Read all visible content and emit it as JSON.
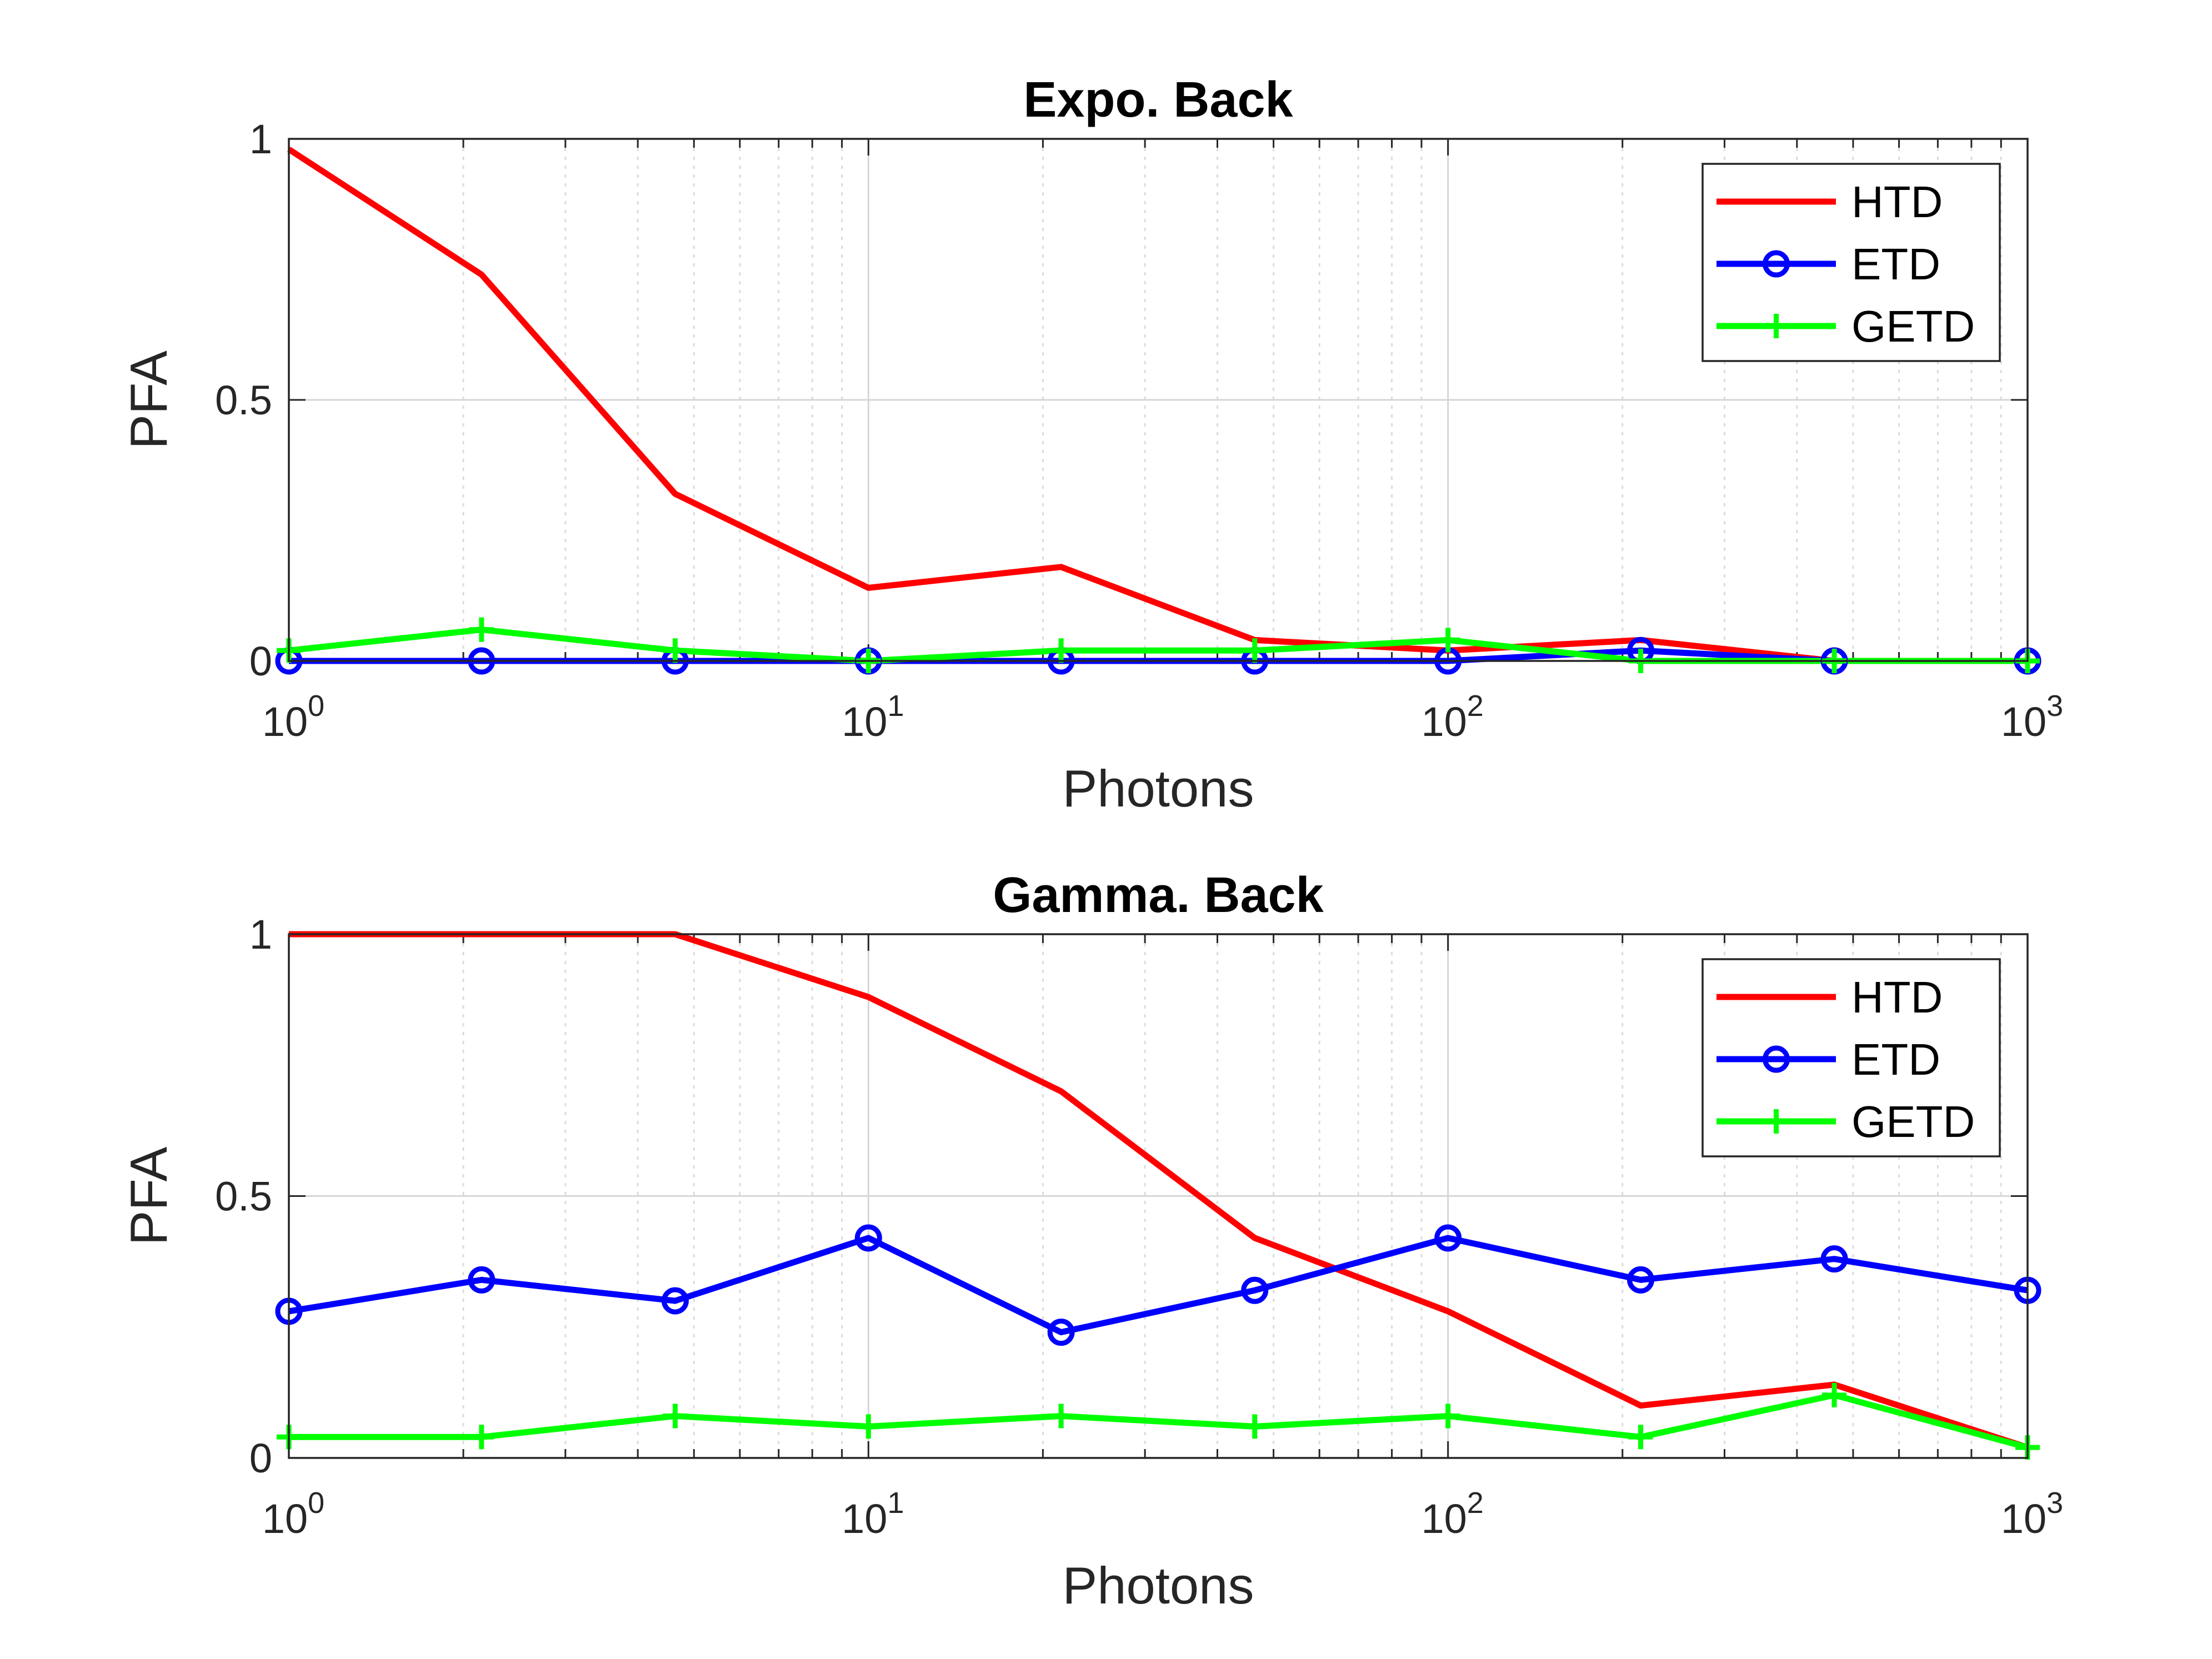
{
  "chart_data": [
    {
      "type": "line",
      "title": "Expo. Back",
      "xlabel": "Photons",
      "ylabel": "PFA",
      "xscale": "log",
      "xlim": [
        1,
        1000
      ],
      "ylim": [
        0,
        1
      ],
      "x_ticks": [
        1,
        10,
        100,
        1000
      ],
      "x_tick_labels": [
        [
          "10",
          "0"
        ],
        [
          "10",
          "1"
        ],
        [
          "10",
          "2"
        ],
        [
          "10",
          "3"
        ]
      ],
      "y_ticks": [
        0,
        0.5,
        1
      ],
      "y_tick_labels": [
        "0",
        "0.5",
        "1"
      ],
      "grid": true,
      "legend_position": "top-right",
      "x": [
        1,
        2.15,
        4.64,
        10,
        21.5,
        46.4,
        100,
        215,
        464,
        1000
      ],
      "series": [
        {
          "name": "HTD",
          "color": "#ff0000",
          "marker": "none",
          "values": [
            0.98,
            0.74,
            0.32,
            0.14,
            0.18,
            0.04,
            0.02,
            0.04,
            0.0,
            0.0
          ]
        },
        {
          "name": "ETD",
          "color": "#0000ff",
          "marker": "circle",
          "values": [
            0.0,
            0.0,
            0.0,
            0.0,
            0.0,
            0.0,
            0.0,
            0.02,
            0.0,
            0.0
          ]
        },
        {
          "name": "GETD",
          "color": "#00ff00",
          "marker": "plus",
          "values": [
            0.02,
            0.06,
            0.02,
            0.0,
            0.02,
            0.02,
            0.04,
            0.0,
            0.0,
            0.0
          ]
        }
      ]
    },
    {
      "type": "line",
      "title": "Gamma. Back",
      "xlabel": "Photons",
      "ylabel": "PFA",
      "xscale": "log",
      "xlim": [
        1,
        1000
      ],
      "ylim": [
        0,
        1
      ],
      "x_ticks": [
        1,
        10,
        100,
        1000
      ],
      "x_tick_labels": [
        [
          "10",
          "0"
        ],
        [
          "10",
          "1"
        ],
        [
          "10",
          "2"
        ],
        [
          "10",
          "3"
        ]
      ],
      "y_ticks": [
        0,
        0.5,
        1
      ],
      "y_tick_labels": [
        "0",
        "0.5",
        "1"
      ],
      "grid": true,
      "legend_position": "top-right",
      "x": [
        1,
        2.15,
        4.64,
        10,
        21.5,
        46.4,
        100,
        215,
        464,
        1000
      ],
      "series": [
        {
          "name": "HTD",
          "color": "#ff0000",
          "marker": "none",
          "values": [
            1.0,
            1.0,
            1.0,
            0.88,
            0.7,
            0.42,
            0.28,
            0.1,
            0.14,
            0.02
          ]
        },
        {
          "name": "ETD",
          "color": "#0000ff",
          "marker": "circle",
          "values": [
            0.28,
            0.34,
            0.3,
            0.42,
            0.24,
            0.32,
            0.42,
            0.34,
            0.38,
            0.32
          ]
        },
        {
          "name": "GETD",
          "color": "#00ff00",
          "marker": "plus",
          "values": [
            0.04,
            0.04,
            0.08,
            0.06,
            0.08,
            0.06,
            0.08,
            0.04,
            0.12,
            0.02
          ]
        }
      ]
    }
  ]
}
